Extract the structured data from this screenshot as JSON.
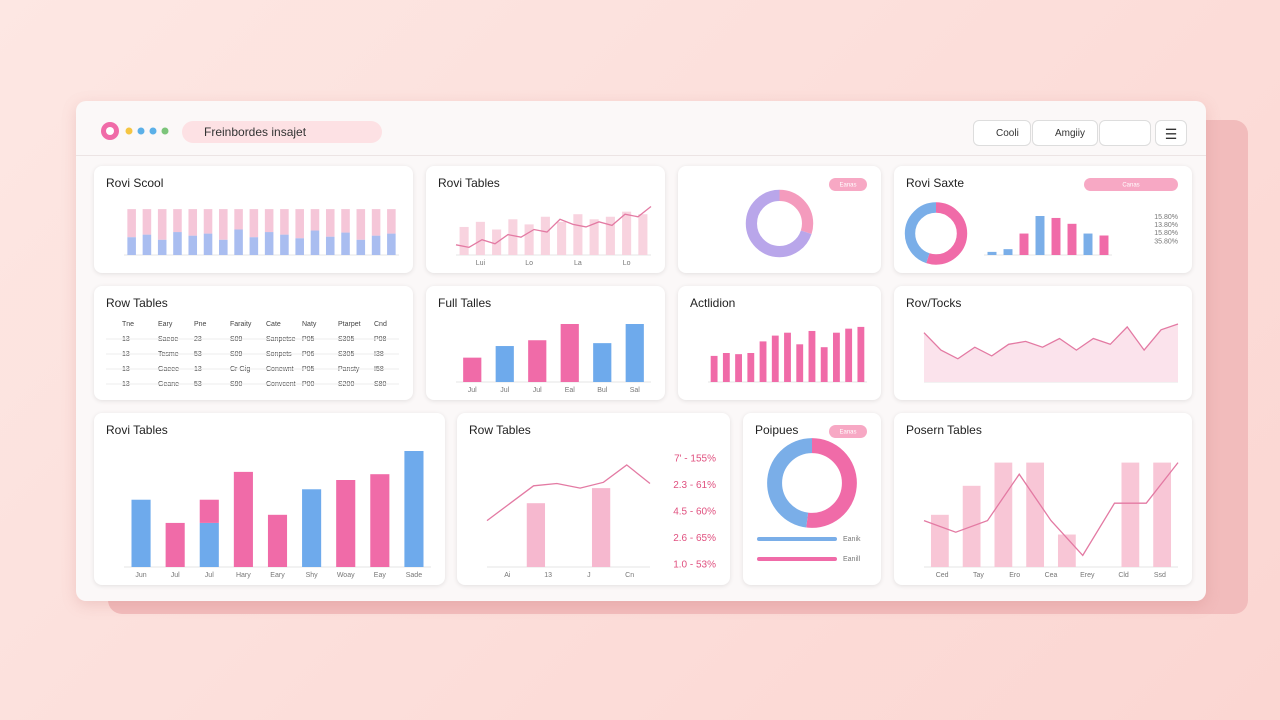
{
  "header": {
    "address": "Freinbordes insajet",
    "buttons": [
      "Cooli",
      "Amgiiy"
    ]
  },
  "panels": [
    {
      "title": "Rovi Scool",
      "ylim": [
        0,
        100
      ],
      "series": [
        {
          "color": "#a9bdf0",
          "values": [
            35,
            40,
            30,
            45,
            38,
            42,
            30,
            50,
            35,
            45,
            40,
            33,
            48,
            36,
            44,
            30,
            38,
            42
          ]
        },
        {
          "color": "#f5c6d8",
          "values": [
            55,
            50,
            60,
            45,
            52,
            48,
            60,
            40,
            55,
            45,
            50,
            57,
            42,
            54,
            46,
            60,
            52,
            48
          ]
        }
      ]
    },
    {
      "title": "Rovi Tables",
      "ylim": [
        0,
        100
      ],
      "line": [
        20,
        15,
        30,
        22,
        40,
        35,
        50,
        45,
        70,
        60,
        55,
        65,
        58,
        80,
        75,
        95
      ],
      "series": [
        {
          "color": "#f8d3df",
          "values": [
            55,
            65,
            50,
            70,
            60,
            75,
            65,
            80,
            70,
            75,
            85,
            80
          ]
        }
      ],
      "xlabels": [
        "Lui",
        "Lo",
        "La",
        "Lo"
      ]
    },
    {
      "badge": "Eanas",
      "donut": [
        30,
        70
      ],
      "colors": [
        "#f49bbd",
        "#b9a6ea"
      ]
    },
    {
      "title": "Rovi Saxte",
      "badge": "Canas",
      "donut": [
        55,
        45
      ],
      "colors": [
        "#f06ba8",
        "#7aaee8"
      ],
      "ylim": [
        0,
        100
      ],
      "series": [
        {
          "color": "#7aaee8",
          "values": [
            8,
            15,
            null,
            100,
            null,
            null,
            55,
            null
          ]
        },
        {
          "color": "#f06ba8",
          "values": [
            null,
            null,
            55,
            null,
            95,
            80,
            null,
            50
          ]
        }
      ],
      "labels": [
        "15.80%",
        "13.80%",
        "15.80%",
        "35.80%"
      ]
    },
    {
      "title": "Row Tables",
      "rows": [
        [
          "Tne",
          "Eary",
          "Pne",
          "Faraity",
          "Cate",
          "Naty",
          "Ptarpet",
          "Cnd"
        ],
        [
          "13",
          "Saeoe",
          "23",
          "S09",
          "Sanpetse",
          "P05",
          "S305",
          "P08"
        ],
        [
          "13",
          "Tesme",
          "53",
          "S09",
          "Sonpets",
          "P06",
          "S305",
          "I38"
        ],
        [
          "13",
          "Gaeee",
          "13",
          "Cr Gig",
          "Conewnt",
          "P05",
          "Pansty",
          "I58"
        ],
        [
          "13",
          "Geane",
          "53",
          "S90",
          "Convcent",
          "P00",
          "S200",
          "S80"
        ]
      ]
    },
    {
      "title": "Full Talles",
      "ylim": [
        0,
        100
      ],
      "series": [
        {
          "color": "#f06ba8",
          "values": [
            42,
            null,
            72,
            100,
            null,
            null
          ]
        },
        {
          "color": "#6eaaec",
          "values": [
            null,
            62,
            null,
            null,
            67,
            100
          ]
        }
      ],
      "xlabels": [
        "Jul",
        "Jul",
        "Jul",
        "Eal",
        "Bul",
        "Sal"
      ]
    },
    {
      "title": "Actlidion",
      "ylim": [
        0,
        100
      ],
      "series": [
        {
          "color": "#f06ba8",
          "values": [
            45,
            50,
            48,
            50,
            70,
            80,
            85,
            65,
            88,
            60,
            85,
            92,
            95
          ]
        }
      ]
    },
    {
      "title": "Rov/Tocks",
      "ylim": [
        0,
        100
      ],
      "line": [
        85,
        55,
        40,
        60,
        45,
        65,
        70,
        60,
        75,
        55,
        75,
        65,
        95,
        55,
        90,
        100
      ],
      "area": true
    },
    {
      "title": "Rovi Tables",
      "ylim": [
        0,
        100
      ],
      "series": [
        {
          "color": "#6eaaec",
          "values": [
            58,
            null,
            38,
            null,
            null,
            67,
            null,
            null,
            100
          ]
        },
        {
          "color": "#f06ba8",
          "values": [
            null,
            38,
            20,
            82,
            45,
            null,
            75,
            80,
            null
          ]
        }
      ],
      "xlabels": [
        "Jun",
        "Jul",
        "Jul",
        "Hary",
        "Eary",
        "Shy",
        "Woay",
        "Eay",
        "Sade"
      ]
    },
    {
      "title": "Row Tables",
      "ylim": [
        0,
        100
      ],
      "line": [
        40,
        55,
        70,
        72,
        68,
        73,
        88,
        72
      ],
      "series": [
        {
          "color": "#f6b8cf",
          "values": [
            null,
            55,
            null,
            68,
            null
          ]
        }
      ],
      "labels": [
        "7' - 155%",
        "2.3 - 61%",
        "4.5 - 60%",
        "2.6 - 65%",
        "1.0 - 53%"
      ],
      "xlabels": [
        "Ai",
        "13",
        "J",
        "Cn"
      ]
    },
    {
      "title": "Poipues",
      "badge": "Eanas",
      "donut": [
        52,
        48
      ],
      "colors": [
        "#f06ba8",
        "#7aaee8"
      ],
      "labels": [
        "Eanik",
        "Eanill"
      ]
    },
    {
      "title": "Posern Tables",
      "ylim": [
        0,
        100
      ],
      "series": [
        {
          "color": "#f8c6d6",
          "values": [
            45,
            70,
            90,
            90,
            28,
            null,
            90,
            90
          ]
        }
      ],
      "line": [
        40,
        30,
        40,
        80,
        40,
        10,
        55,
        55,
        90
      ],
      "xlabels": [
        "Ced",
        "Tay",
        "Ero",
        "Cea",
        "Erey",
        "Cld",
        "Ssd"
      ]
    }
  ]
}
